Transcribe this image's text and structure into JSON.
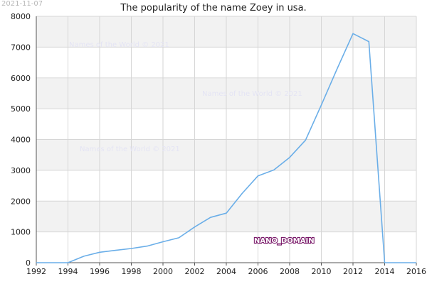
{
  "page": {
    "date_stamp": "2021-11-07",
    "watermark": "Names of the World © 2021",
    "domain_label": "NANO_DOMAIN"
  },
  "colors": {
    "line": "#6aaee8",
    "band": "#f2f2f2",
    "grid": "#d6d6d6",
    "axis": "#555555"
  },
  "chart_data": {
    "type": "line",
    "title": "The popularity of the name Zoey in usa.",
    "xlabel": "",
    "ylabel": "",
    "xlim": [
      1992,
      2016
    ],
    "ylim": [
      0,
      8000
    ],
    "x_ticks": [
      "1992",
      "1994",
      "1996",
      "1998",
      "2000",
      "2002",
      "2004",
      "2006",
      "2008",
      "2010",
      "2012",
      "2014",
      "2016"
    ],
    "y_ticks": [
      "0",
      "1000",
      "2000",
      "3000",
      "4000",
      "5000",
      "6000",
      "7000",
      "8000"
    ],
    "grid": true,
    "legend": "none",
    "series": [
      {
        "x": [
          1992,
          1993,
          1994,
          1995,
          1996,
          1997,
          1998,
          1999,
          2000,
          2001,
          2002,
          2003,
          2004,
          2005,
          2006,
          2007,
          2008,
          2009,
          2010,
          2011,
          2012,
          2013,
          2014,
          2015,
          2016
        ],
        "y": [
          0,
          0,
          0,
          210,
          340,
          400,
          460,
          540,
          680,
          810,
          1160,
          1470,
          1610,
          2250,
          2820,
          3010,
          3420,
          3980,
          5120,
          6300,
          7440,
          7180,
          0,
          0,
          0
        ]
      }
    ]
  }
}
